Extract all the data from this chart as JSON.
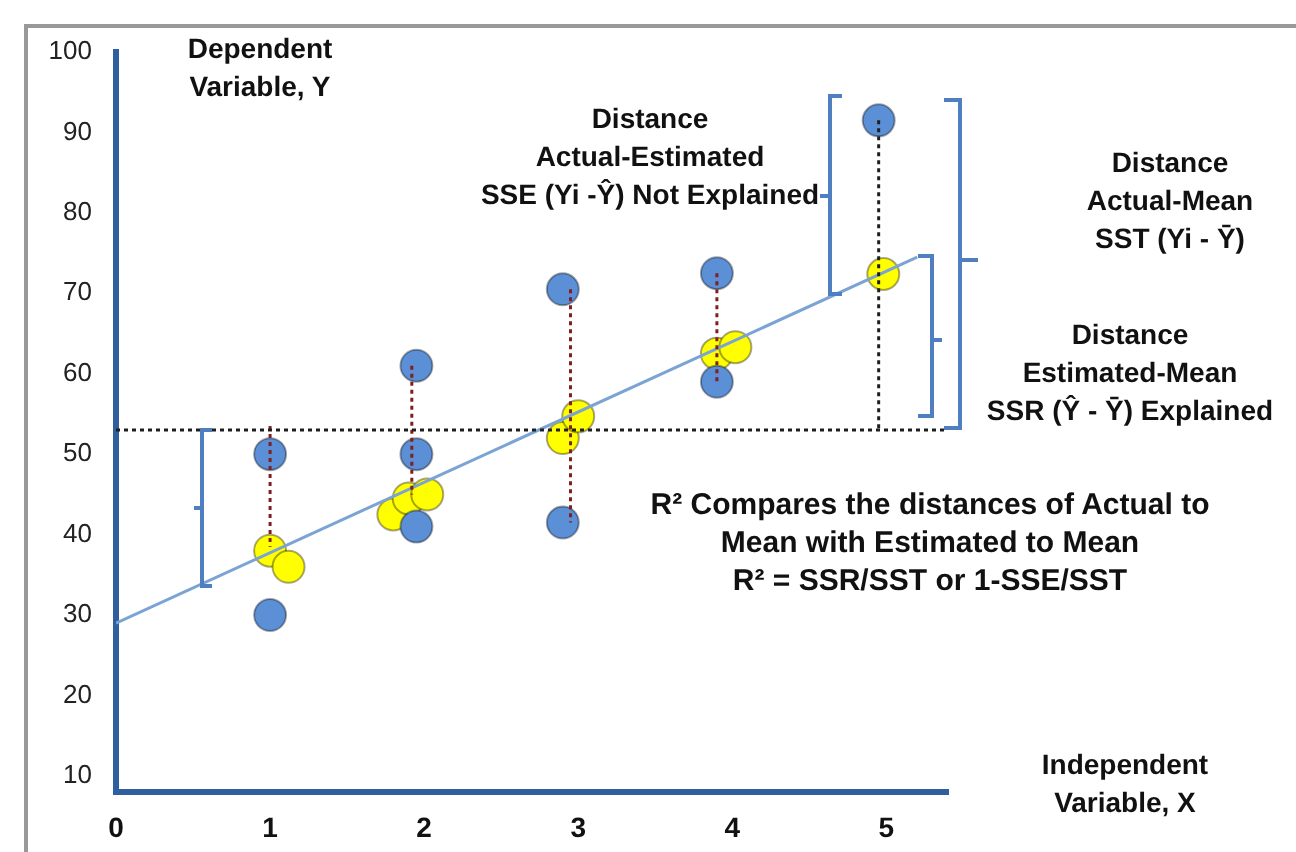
{
  "chart_data": {
    "type": "scatter",
    "xlabel": "Independent\nVariable, X",
    "ylabel": "Dependent\nVariable, Y",
    "xlim": [
      0,
      5.4
    ],
    "xticks": [
      0,
      1,
      2,
      3,
      4,
      5
    ],
    "ylim": [
      8,
      100
    ],
    "yticks": [
      10,
      20,
      30,
      40,
      50,
      60,
      70,
      80,
      90,
      100
    ],
    "grid": false,
    "legend": false,
    "series": [
      {
        "type": "line",
        "color": "#1f1f1f",
        "marker": "none",
        "line_style": "dotted",
        "x": [
          4.95,
          4.95
        ],
        "values": [
          91.5,
          53
        ]
      },
      {
        "type": "line",
        "color": "#7f1f1f",
        "marker": "none",
        "line_style": "dotted",
        "x": [
          1,
          1
        ],
        "values": [
          53.5,
          38.5
        ]
      },
      {
        "type": "line",
        "color": "#7f1f1f",
        "marker": "none",
        "line_style": "dotted",
        "x": [
          1.92,
          1.92
        ],
        "values": [
          61,
          45
        ]
      },
      {
        "type": "line",
        "color": "#7f1f1f",
        "marker": "none",
        "line_style": "dotted",
        "x": [
          2.95,
          2.95
        ],
        "values": [
          70.5,
          41.5
        ]
      },
      {
        "type": "line",
        "color": "#7f1f1f",
        "marker": "none",
        "line_style": "dotted",
        "x": [
          3.9,
          3.9
        ],
        "values": [
          72.5,
          59
        ]
      },
      {
        "type": "line",
        "color": "#7ba3d4",
        "marker": "none",
        "line_style": "solid",
        "x": [
          0,
          5.2
        ],
        "values": [
          29,
          74.5
        ]
      },
      {
        "color": "#5b8fd6",
        "marker": "circle",
        "x": [
          1,
          1,
          1.95,
          1.95,
          1.95,
          2.9,
          2.9,
          3.9,
          3.9,
          4.95
        ],
        "values": [
          50,
          30,
          61,
          50,
          41,
          70.5,
          41.5,
          72.5,
          59,
          91.5
        ]
      },
      {
        "color": "#ffff00",
        "marker": "circle",
        "x": [
          1,
          1.12,
          1.8,
          1.9,
          2.02,
          2.9,
          3,
          3.9,
          4.02,
          4.98
        ],
        "values": [
          38,
          36,
          42.5,
          44.5,
          45,
          52,
          54.7,
          62.5,
          63.3,
          72.4
        ]
      }
    ],
    "ref_lines": [
      {
        "axis": "y",
        "value": 53,
        "color": "#1f1f1f",
        "line_style": "dotted"
      }
    ],
    "annotations": [
      "Distance\nActual-Estimated\nSSE (Yi -Ŷ) Not Explained",
      "Distance\nActual-Mean\nSST (Yi - Ȳ)",
      "Distance\nEstimated-Mean\nSSR (Ŷ - Ȳ) Explained",
      "R² Compares the distances of Actual to\nMean with Estimated to Mean\nR² = SSR/SST or 1-SSE/SST"
    ]
  }
}
